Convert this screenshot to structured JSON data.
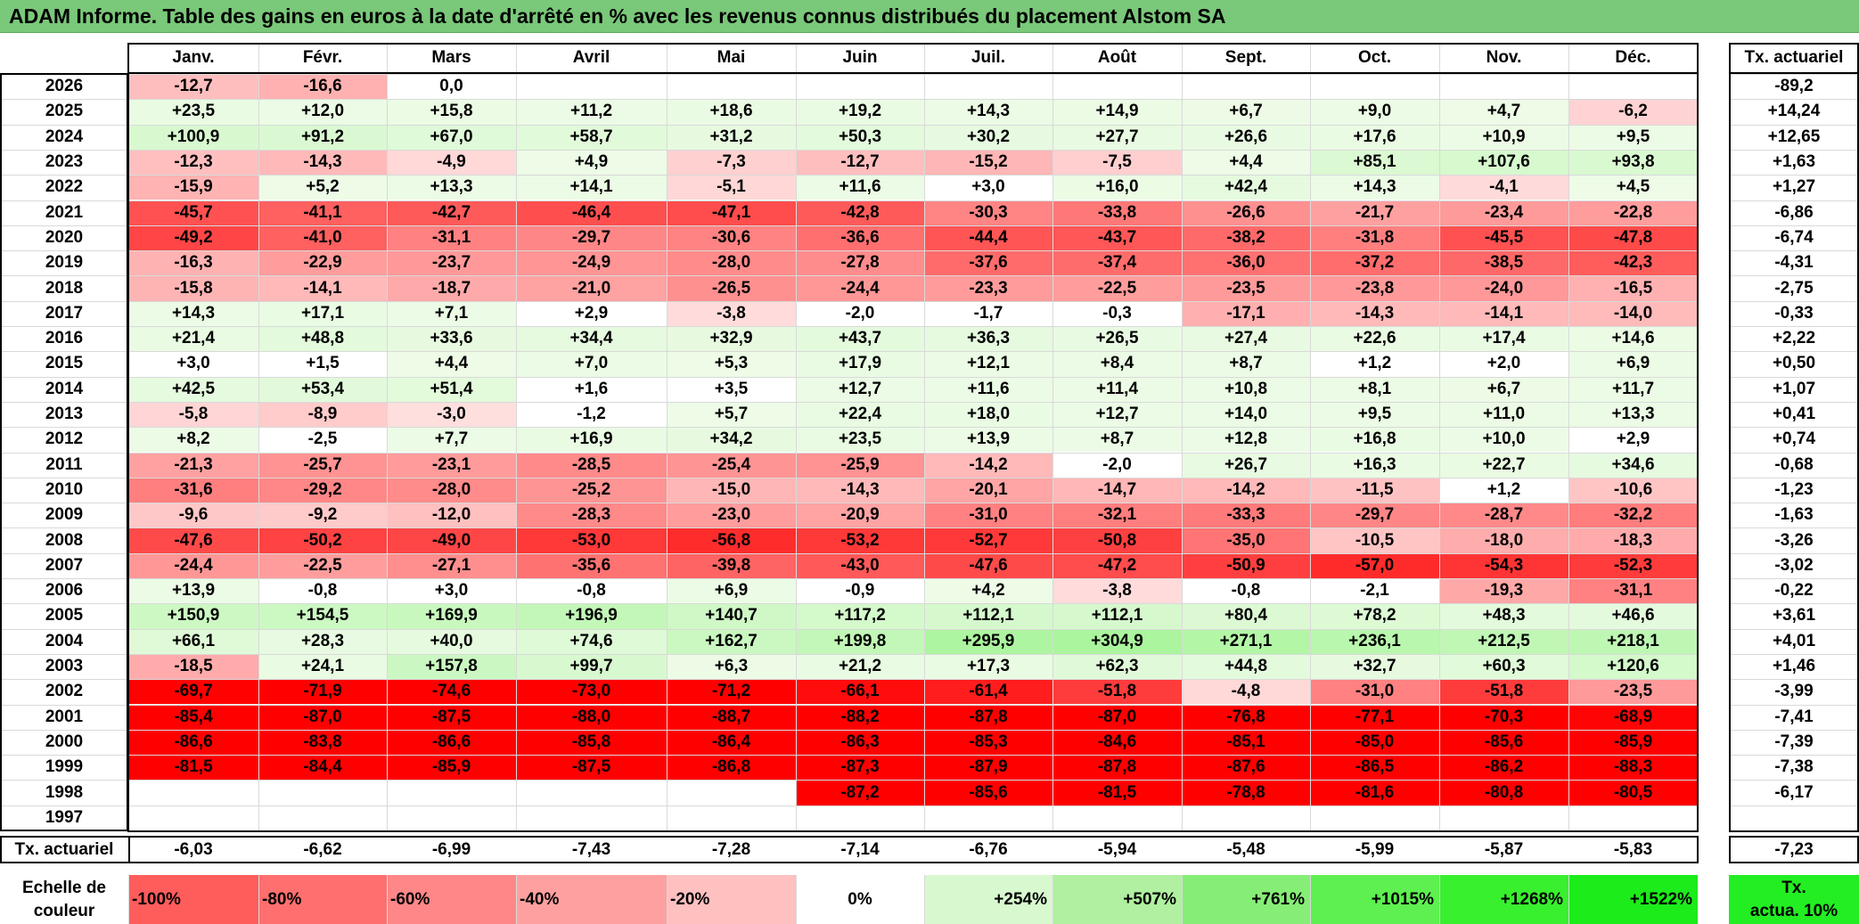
{
  "title": "ADAM Informe. Table des gains en euros à la date d'arrêté en % avec les revenus connus distribués du placement Alstom SA",
  "months": [
    "Janv.",
    "Févr.",
    "Mars",
    "Avril",
    "Mai",
    "Juin",
    "Juil.",
    "Août",
    "Sept.",
    "Oct.",
    "Nov.",
    "Déc."
  ],
  "actuarial_header": "Tx. actuariel",
  "rows": [
    {
      "year": "2026",
      "values": [
        "-12,7",
        "-16,6",
        "0,0",
        "",
        "",
        "",
        "",
        "",
        "",
        "",
        "",
        ""
      ],
      "rate": "-89,2"
    },
    {
      "year": "2025",
      "values": [
        "+23,5",
        "+12,0",
        "+15,8",
        "+11,2",
        "+18,6",
        "+19,2",
        "+14,3",
        "+14,9",
        "+6,7",
        "+9,0",
        "+4,7",
        "-6,2"
      ],
      "rate": "+14,24"
    },
    {
      "year": "2024",
      "values": [
        "+100,9",
        "+91,2",
        "+67,0",
        "+58,7",
        "+31,2",
        "+50,3",
        "+30,2",
        "+27,7",
        "+26,6",
        "+17,6",
        "+10,9",
        "+9,5"
      ],
      "rate": "+12,65"
    },
    {
      "year": "2023",
      "values": [
        "-12,3",
        "-14,3",
        "-4,9",
        "+4,9",
        "-7,3",
        "-12,7",
        "-15,2",
        "-7,5",
        "+4,4",
        "+85,1",
        "+107,6",
        "+93,8"
      ],
      "rate": "+1,63"
    },
    {
      "year": "2022",
      "values": [
        "-15,9",
        "+5,2",
        "+13,3",
        "+14,1",
        "-5,1",
        "+11,6",
        "+3,0",
        "+16,0",
        "+42,4",
        "+14,3",
        "-4,1",
        "+4,5"
      ],
      "rate": "+1,27"
    },
    {
      "year": "2021",
      "values": [
        "-45,7",
        "-41,1",
        "-42,7",
        "-46,4",
        "-47,1",
        "-42,8",
        "-30,3",
        "-33,8",
        "-26,6",
        "-21,7",
        "-23,4",
        "-22,8"
      ],
      "rate": "-6,86"
    },
    {
      "year": "2020",
      "values": [
        "-49,2",
        "-41,0",
        "-31,1",
        "-29,7",
        "-30,6",
        "-36,6",
        "-44,4",
        "-43,7",
        "-38,2",
        "-31,8",
        "-45,5",
        "-47,8"
      ],
      "rate": "-6,74"
    },
    {
      "year": "2019",
      "values": [
        "-16,3",
        "-22,9",
        "-23,7",
        "-24,9",
        "-28,0",
        "-27,8",
        "-37,6",
        "-37,4",
        "-36,0",
        "-37,2",
        "-38,5",
        "-42,3"
      ],
      "rate": "-4,31"
    },
    {
      "year": "2018",
      "values": [
        "-15,8",
        "-14,1",
        "-18,7",
        "-21,0",
        "-26,5",
        "-24,4",
        "-23,3",
        "-22,5",
        "-23,5",
        "-23,8",
        "-24,0",
        "-16,5"
      ],
      "rate": "-2,75"
    },
    {
      "year": "2017",
      "values": [
        "+14,3",
        "+17,1",
        "+7,1",
        "+2,9",
        "-3,8",
        "-2,0",
        "-1,7",
        "-0,3",
        "-17,1",
        "-14,3",
        "-14,1",
        "-14,0"
      ],
      "rate": "-0,33"
    },
    {
      "year": "2016",
      "values": [
        "+21,4",
        "+48,8",
        "+33,6",
        "+34,4",
        "+32,9",
        "+43,7",
        "+36,3",
        "+26,5",
        "+27,4",
        "+22,6",
        "+17,4",
        "+14,6"
      ],
      "rate": "+2,22"
    },
    {
      "year": "2015",
      "values": [
        "+3,0",
        "+1,5",
        "+4,4",
        "+7,0",
        "+5,3",
        "+17,9",
        "+12,1",
        "+8,4",
        "+8,7",
        "+1,2",
        "+2,0",
        "+6,9"
      ],
      "rate": "+0,50"
    },
    {
      "year": "2014",
      "values": [
        "+42,5",
        "+53,4",
        "+51,4",
        "+1,6",
        "+3,5",
        "+12,7",
        "+11,6",
        "+11,4",
        "+10,8",
        "+8,1",
        "+6,7",
        "+11,7"
      ],
      "rate": "+1,07"
    },
    {
      "year": "2013",
      "values": [
        "-5,8",
        "-8,9",
        "-3,0",
        "-1,2",
        "+5,7",
        "+22,4",
        "+18,0",
        "+12,7",
        "+14,0",
        "+9,5",
        "+11,0",
        "+13,3"
      ],
      "rate": "+0,41"
    },
    {
      "year": "2012",
      "values": [
        "+8,2",
        "-2,5",
        "+7,7",
        "+16,9",
        "+34,2",
        "+23,5",
        "+13,9",
        "+8,7",
        "+12,8",
        "+16,8",
        "+10,0",
        "+2,9"
      ],
      "rate": "+0,74"
    },
    {
      "year": "2011",
      "values": [
        "-21,3",
        "-25,7",
        "-23,1",
        "-28,5",
        "-25,4",
        "-25,9",
        "-14,2",
        "-2,0",
        "+26,7",
        "+16,3",
        "+22,7",
        "+34,6"
      ],
      "rate": "-0,68"
    },
    {
      "year": "2010",
      "values": [
        "-31,6",
        "-29,2",
        "-28,0",
        "-25,2",
        "-15,0",
        "-14,3",
        "-20,1",
        "-14,7",
        "-14,2",
        "-11,5",
        "+1,2",
        "-10,6"
      ],
      "rate": "-1,23"
    },
    {
      "year": "2009",
      "values": [
        "-9,6",
        "-9,2",
        "-12,0",
        "-28,3",
        "-23,0",
        "-20,9",
        "-31,0",
        "-32,1",
        "-33,3",
        "-29,7",
        "-28,7",
        "-32,2"
      ],
      "rate": "-1,63"
    },
    {
      "year": "2008",
      "values": [
        "-47,6",
        "-50,2",
        "-49,0",
        "-53,0",
        "-56,8",
        "-53,2",
        "-52,7",
        "-50,8",
        "-35,0",
        "-10,5",
        "-18,0",
        "-18,3"
      ],
      "rate": "-3,26"
    },
    {
      "year": "2007",
      "values": [
        "-24,4",
        "-22,5",
        "-27,1",
        "-35,6",
        "-39,8",
        "-43,0",
        "-47,6",
        "-47,2",
        "-50,9",
        "-57,0",
        "-54,3",
        "-52,3"
      ],
      "rate": "-3,02"
    },
    {
      "year": "2006",
      "values": [
        "+13,9",
        "-0,8",
        "+3,0",
        "-0,8",
        "+6,9",
        "-0,9",
        "+4,2",
        "-3,8",
        "-0,8",
        "-2,1",
        "-19,3",
        "-31,1"
      ],
      "rate": "-0,22"
    },
    {
      "year": "2005",
      "values": [
        "+150,9",
        "+154,5",
        "+169,9",
        "+196,9",
        "+140,7",
        "+117,2",
        "+112,1",
        "+112,1",
        "+80,4",
        "+78,2",
        "+48,3",
        "+46,6"
      ],
      "rate": "+3,61"
    },
    {
      "year": "2004",
      "values": [
        "+66,1",
        "+28,3",
        "+40,0",
        "+74,6",
        "+162,7",
        "+199,8",
        "+295,9",
        "+304,9",
        "+271,1",
        "+236,1",
        "+212,5",
        "+218,1"
      ],
      "rate": "+4,01"
    },
    {
      "year": "2003",
      "values": [
        "-18,5",
        "+24,1",
        "+157,8",
        "+99,7",
        "+6,3",
        "+21,2",
        "+17,3",
        "+62,3",
        "+44,8",
        "+32,7",
        "+60,3",
        "+120,6"
      ],
      "rate": "+1,46"
    },
    {
      "year": "2002",
      "values": [
        "-69,7",
        "-71,9",
        "-74,6",
        "-73,0",
        "-71,2",
        "-66,1",
        "-61,4",
        "-51,8",
        "-4,8",
        "-31,0",
        "-51,8",
        "-23,5"
      ],
      "rate": "-3,99"
    },
    {
      "year": "2001",
      "values": [
        "-85,4",
        "-87,0",
        "-87,5",
        "-88,0",
        "-88,7",
        "-88,2",
        "-87,8",
        "-87,0",
        "-76,8",
        "-77,1",
        "-70,3",
        "-68,9"
      ],
      "rate": "-7,41"
    },
    {
      "year": "2000",
      "values": [
        "-86,6",
        "-83,8",
        "-86,6",
        "-85,8",
        "-86,4",
        "-86,3",
        "-85,3",
        "-84,6",
        "-85,1",
        "-85,0",
        "-85,6",
        "-85,9"
      ],
      "rate": "-7,39"
    },
    {
      "year": "1999",
      "values": [
        "-81,5",
        "-84,4",
        "-85,9",
        "-87,5",
        "-86,8",
        "-87,3",
        "-87,9",
        "-87,8",
        "-87,6",
        "-86,5",
        "-86,2",
        "-88,3"
      ],
      "rate": "-7,38"
    },
    {
      "year": "1998",
      "values": [
        "",
        "",
        "",
        "",
        "",
        "-87,2",
        "-85,6",
        "-81,5",
        "-78,8",
        "-81,6",
        "-80,8",
        "-80,5"
      ],
      "rate": "-6,17"
    },
    {
      "year": "1997",
      "values": [
        "",
        "",
        "",
        "",
        "",
        "",
        "",
        "",
        "",
        "",
        "",
        ""
      ],
      "rate": ""
    }
  ],
  "footer": {
    "label": "Tx. actuariel",
    "values": [
      "-6,03",
      "-6,62",
      "-6,99",
      "-7,43",
      "-7,28",
      "-7,14",
      "-6,76",
      "-5,94",
      "-5,48",
      "-5,99",
      "-5,87",
      "-5,83"
    ],
    "total": "-7,23"
  },
  "scale": {
    "label_line1": "Echelle de",
    "label_line2": "couleur",
    "stops": [
      "-100%",
      "-80%",
      "-60%",
      "-40%",
      "-20%",
      "0%",
      "+254%",
      "+507%",
      "+761%",
      "+1015%",
      "+1268%",
      "+1522%"
    ],
    "colors": [
      "#ff5c5c",
      "#ff6f6f",
      "#ff8787",
      "#ffa0a0",
      "#ffc0c0",
      "#ffffff",
      "#d8f8d0",
      "#b0f0a0",
      "#86ee76",
      "#5ef050",
      "#38f02e",
      "#1cec1a"
    ],
    "rate_line1": "Tx.",
    "rate_line2": "actua. 10%",
    "rate_color": "#22ee22"
  },
  "colors": {
    "title_bg": "#7ac87a",
    "red_full": "#ff0000",
    "red_light": "#ffe8e8",
    "green_light": "#eefbe8",
    "green_full": "#a8f59a"
  }
}
